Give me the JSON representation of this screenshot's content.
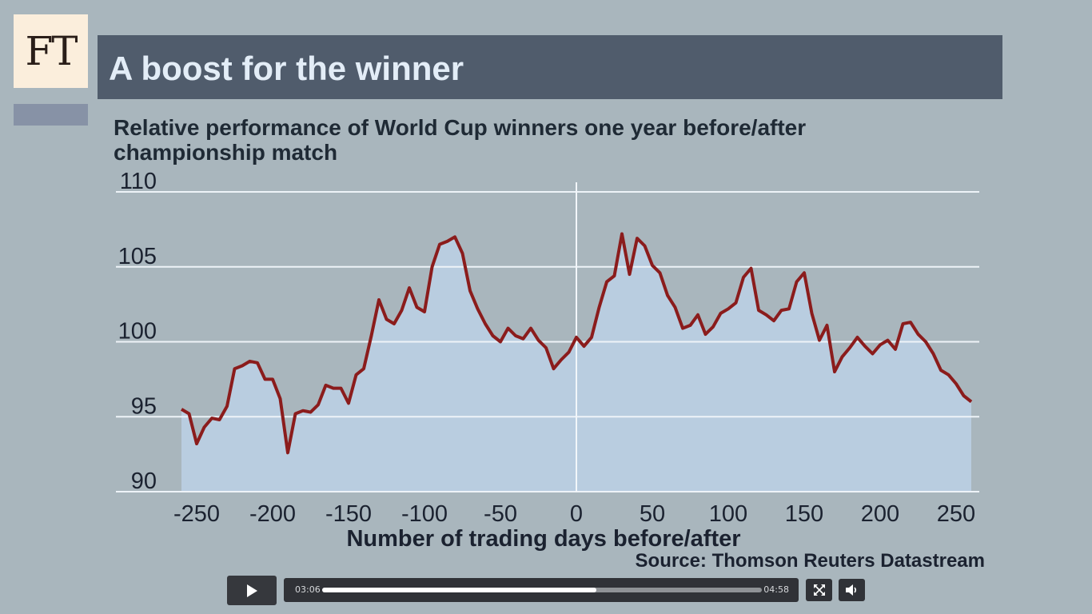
{
  "brand": {
    "logo_text": "FT"
  },
  "chart_data": {
    "type": "area",
    "title": "A boost for the winner",
    "subtitle": "Relative performance of World Cup winners one year before/after championship match",
    "xlabel": "Number of trading days before/after",
    "ylabel": "",
    "source": "Source: Thomson Reuters Datastream",
    "xlim": [
      -260,
      260
    ],
    "ylim": [
      90,
      110
    ],
    "x_ticks": [
      "-250",
      "-200",
      "-150",
      "-100",
      "-50",
      "0",
      "50",
      "100",
      "150",
      "200",
      "250"
    ],
    "y_ticks": [
      "110",
      "105",
      "100",
      "95",
      "90"
    ],
    "reference_line_x": 0,
    "grid": true,
    "x": [
      -260,
      -255,
      -250,
      -245,
      -240,
      -235,
      -230,
      -225,
      -220,
      -215,
      -210,
      -205,
      -200,
      -195,
      -190,
      -185,
      -180,
      -175,
      -170,
      -165,
      -160,
      -155,
      -150,
      -145,
      -140,
      -135,
      -130,
      -125,
      -120,
      -115,
      -110,
      -105,
      -100,
      -95,
      -90,
      -85,
      -80,
      -75,
      -70,
      -65,
      -60,
      -55,
      -50,
      -45,
      -40,
      -35,
      -30,
      -25,
      -20,
      -15,
      -10,
      -5,
      0,
      5,
      10,
      15,
      20,
      25,
      30,
      35,
      40,
      45,
      50,
      55,
      60,
      65,
      70,
      75,
      80,
      85,
      90,
      95,
      100,
      105,
      110,
      115,
      120,
      125,
      130,
      135,
      140,
      145,
      150,
      155,
      160,
      165,
      170,
      175,
      180,
      185,
      190,
      195,
      200,
      205,
      210,
      215,
      220,
      225,
      230,
      235,
      240,
      245,
      250,
      255,
      260
    ],
    "series": [
      {
        "color": "#8b1c1c",
        "fill": "#b9cde0",
        "values": [
          95.5,
          95.2,
          93.2,
          94.3,
          94.9,
          94.8,
          95.7,
          98.2,
          98.4,
          98.7,
          98.6,
          97.5,
          97.5,
          96.2,
          92.6,
          95.2,
          95.4,
          95.3,
          95.8,
          97.1,
          96.9,
          96.9,
          95.9,
          97.8,
          98.2,
          100.4,
          102.8,
          101.5,
          101.2,
          102.1,
          103.6,
          102.3,
          102.0,
          105.0,
          106.5,
          106.7,
          107.0,
          105.9,
          103.4,
          102.2,
          101.2,
          100.4,
          100.0,
          100.9,
          100.4,
          100.2,
          100.9,
          100.1,
          99.6,
          98.2,
          98.8,
          99.3,
          100.3,
          99.7,
          100.3,
          102.3,
          104.0,
          104.4,
          107.2,
          104.5,
          106.9,
          106.4,
          105.1,
          104.6,
          103.1,
          102.3,
          100.9,
          101.1,
          101.8,
          100.5,
          101.0,
          101.9,
          102.2,
          102.6,
          104.3,
          104.9,
          102.1,
          101.8,
          101.4,
          102.1,
          102.2,
          104.0,
          104.6,
          101.9,
          100.1,
          101.1,
          98.0,
          99.0,
          99.6,
          100.3,
          99.7,
          99.2,
          99.8,
          100.1,
          99.5,
          101.2,
          101.3,
          100.5,
          100.0,
          99.2,
          98.1,
          97.8,
          97.2,
          96.4,
          96.0
        ]
      }
    ]
  },
  "player": {
    "current_time": "03:06",
    "duration": "04:58",
    "progress": 0.624
  }
}
